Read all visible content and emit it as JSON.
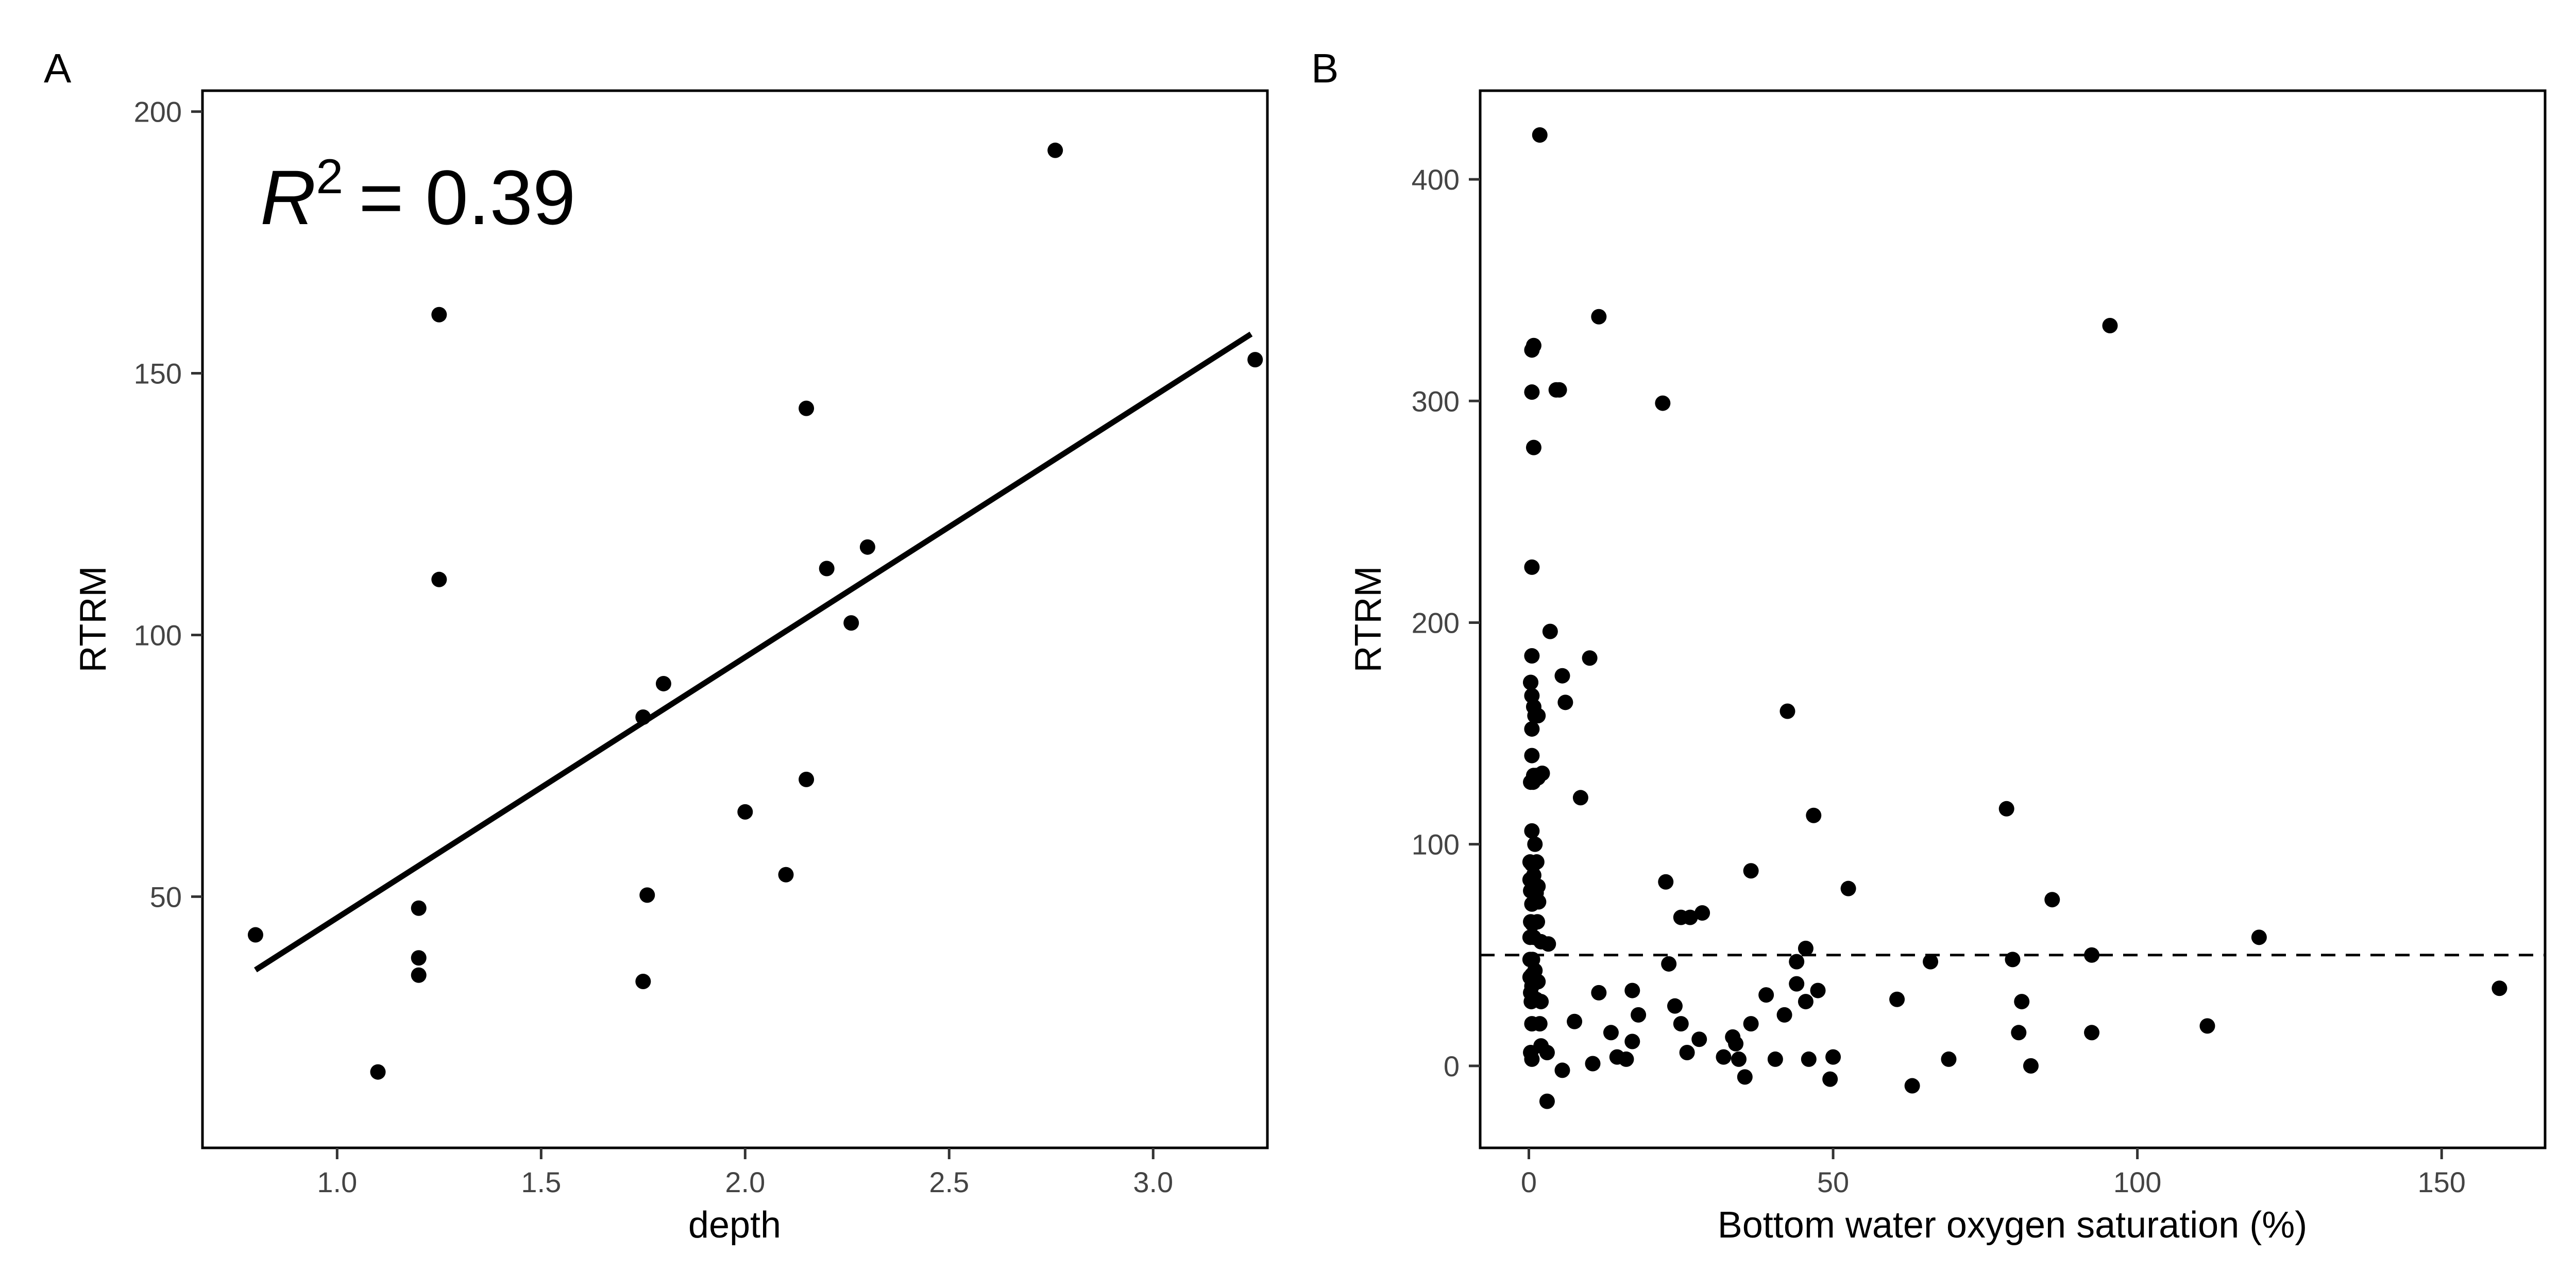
{
  "chart_data": [
    {
      "panel": "A",
      "type": "scatter",
      "xlabel": "depth",
      "ylabel": "RTRM",
      "xlim": [
        0.67,
        3.28
      ],
      "ylim": [
        2,
        204
      ],
      "xticks": [
        "1.0",
        "1.5",
        "2.0",
        "2.5",
        "3.0"
      ],
      "yticks": [
        "50",
        "100",
        "150",
        "200"
      ],
      "annotation": {
        "symbol": "R",
        "exponent": "2",
        "value": "= 0.39"
      },
      "fit_line": {
        "x": [
          0.8,
          3.24
        ],
        "y": [
          36,
          157.5
        ]
      },
      "points": {
        "x": [
          0.8,
          1.1,
          1.2,
          1.2,
          1.2,
          1.25,
          1.25,
          1.75,
          1.76,
          1.75,
          1.8,
          2.0,
          2.1,
          2.15,
          2.15,
          2.2,
          2.26,
          2.3,
          2.76,
          3.25
        ],
        "y": [
          42.7,
          16.5,
          47.8,
          38.3,
          35.0,
          161.2,
          110.6,
          33.8,
          50.3,
          84.3,
          90.7,
          66.2,
          54.2,
          72.4,
          143.3,
          112.7,
          102.3,
          116.8,
          192.6,
          152.6
        ]
      },
      "grid": false
    },
    {
      "panel": "B",
      "type": "scatter",
      "xlabel": "Bottom water oxygen saturation (%)",
      "ylabel": "RTRM",
      "xlim": [
        -8,
        167
      ],
      "ylim": [
        -37,
        440
      ],
      "xticks": [
        "0",
        "50",
        "100",
        "150"
      ],
      "yticks": [
        "0",
        "100",
        "200",
        "300",
        "400"
      ],
      "reference_line": {
        "y": 50
      },
      "points": {
        "x": [
          1.8,
          0.8,
          0.5,
          0.5,
          0.8,
          4.5,
          5.0,
          0.5,
          11.5,
          22.0,
          95.5,
          0.5,
          3.5,
          10.0,
          0.3,
          0.3,
          0.5,
          0.8,
          1.0,
          1.5,
          0.5,
          5.5,
          6.0,
          42.5,
          0.5,
          0.8,
          1.2,
          2.2,
          0.3,
          0.7,
          1.5,
          8.5,
          0.5,
          1.0,
          46.8,
          78.5,
          0.2,
          0.5,
          0.8,
          1.3,
          0.2,
          0.8,
          1.5,
          22.5,
          36.5,
          52.5,
          0.3,
          1.2,
          0.5,
          1.6,
          86.0,
          0.3,
          0.6,
          1.4,
          0.2,
          0.8,
          2.0,
          28.5,
          25.0,
          26.5,
          0.2,
          0.6,
          3.2,
          1.0,
          0.2,
          0.5,
          45.5,
          120.0,
          0.5,
          1.5,
          23.0,
          44.0,
          79.5,
          92.5,
          66.0,
          0.3,
          1.2,
          0.4,
          2.0,
          47.5,
          11.5,
          17.0,
          39.0,
          44.0,
          42.0,
          60.5,
          0.5,
          1.8,
          81.0,
          24.0,
          45.5,
          159.5,
          18.0,
          36.5,
          25.0,
          7.5,
          2.0,
          13.5,
          33.5,
          80.5,
          92.5,
          111.5,
          17.0,
          28.0,
          34.0,
          0.3,
          3.0,
          0.5,
          26.0,
          14.5,
          16.0,
          32.0,
          40.5,
          46.0,
          50.0,
          69.0,
          34.5,
          5.5,
          10.5,
          82.5,
          35.5,
          49.5,
          63.0,
          3.0
        ],
        "y": [
          420,
          325,
          323,
          304,
          279,
          305,
          305,
          225,
          338,
          299,
          334,
          185,
          196,
          184,
          173,
          173,
          167,
          162,
          158,
          158,
          152,
          176,
          164,
          160,
          140,
          131,
          131,
          132,
          128,
          128,
          130,
          121,
          106,
          100,
          113,
          116,
          92,
          91,
          91,
          92,
          84,
          86,
          81,
          83,
          88,
          80,
          79,
          78,
          73,
          74,
          75,
          65,
          64,
          65,
          58,
          58,
          56,
          69,
          67,
          67,
          48,
          48,
          55,
          43,
          40,
          41,
          53,
          58,
          36,
          38,
          46,
          47,
          48,
          50,
          47,
          33,
          30,
          29,
          29,
          34,
          33,
          34,
          32,
          37,
          23,
          30,
          19,
          19,
          29,
          27,
          29,
          35,
          23,
          19,
          19,
          20,
          9,
          15,
          13,
          15,
          15,
          18,
          11,
          12,
          10,
          6,
          6,
          3,
          6,
          4,
          3,
          4,
          3,
          3,
          4,
          3,
          3,
          -2,
          1,
          0,
          -5,
          -6,
          -9,
          -16
        ]
      },
      "grid": false
    }
  ]
}
